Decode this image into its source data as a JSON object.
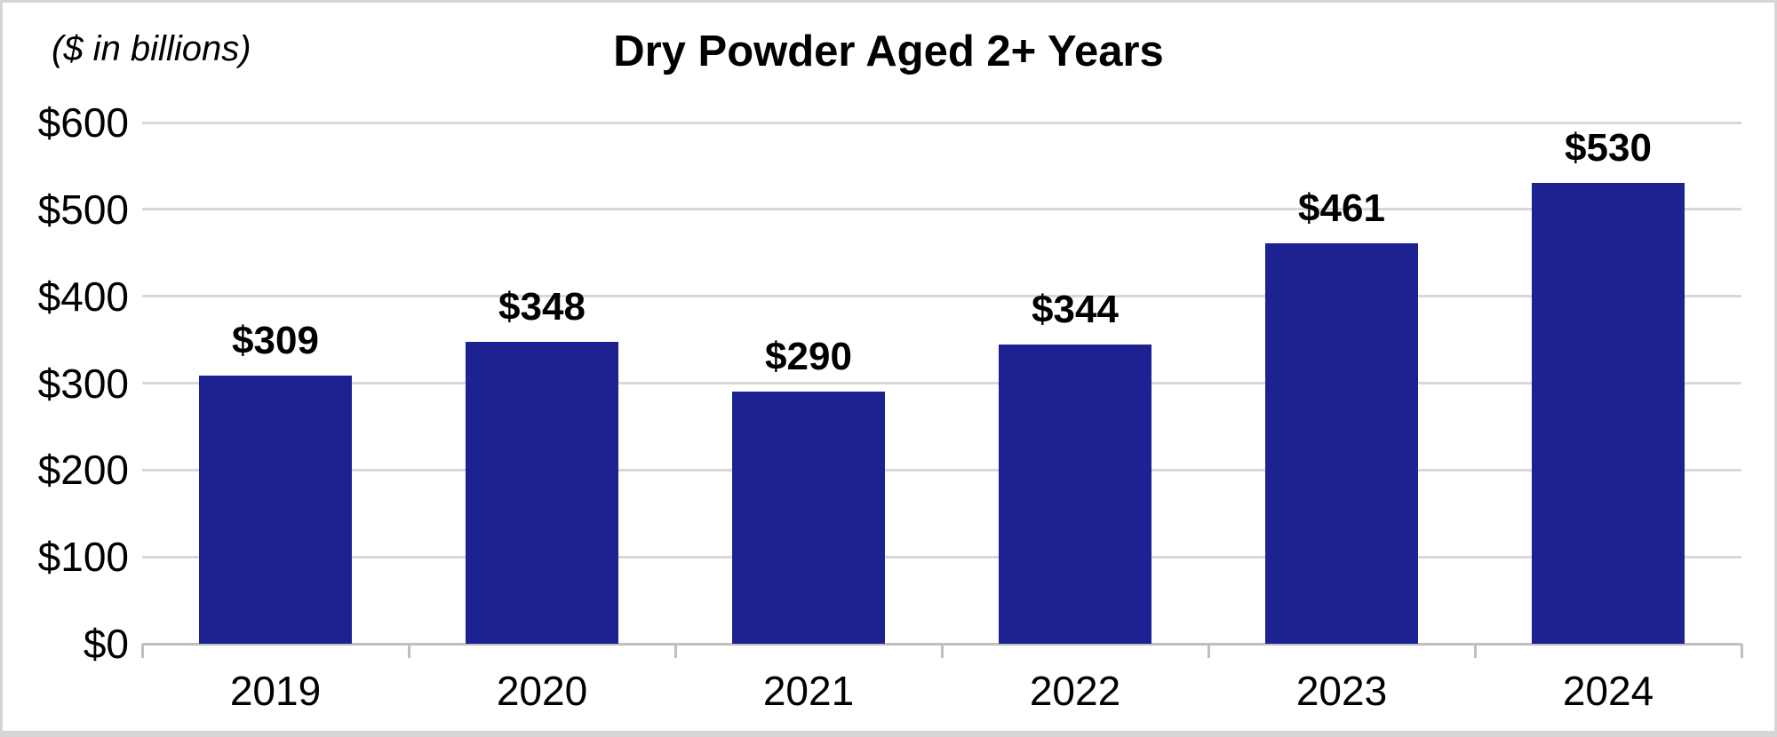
{
  "chart_data": {
    "type": "bar",
    "title": "Dry Powder Aged 2+ Years",
    "note": "($ in billions)",
    "categories": [
      "2019",
      "2020",
      "2021",
      "2022",
      "2023",
      "2024"
    ],
    "values": [
      309,
      348,
      290,
      344,
      461,
      530
    ],
    "value_labels": [
      "$309",
      "$348",
      "$290",
      "$344",
      "$461",
      "$530"
    ],
    "xlabel": "",
    "ylabel": "",
    "ylim": [
      0,
      600
    ],
    "yticks": [
      0,
      100,
      200,
      300,
      400,
      500,
      600
    ],
    "ytick_labels": [
      "$0",
      "$100",
      "$200",
      "$300",
      "$400",
      "$500",
      "$600"
    ],
    "grid": "horizontal",
    "legend": "none",
    "colors": {
      "bar": "#1C2291",
      "gridline": "#D9D9D9",
      "axis": "#BFBFBF",
      "text": "#000000",
      "background": "#FFFFFF",
      "border": "#D6D6D6"
    }
  }
}
